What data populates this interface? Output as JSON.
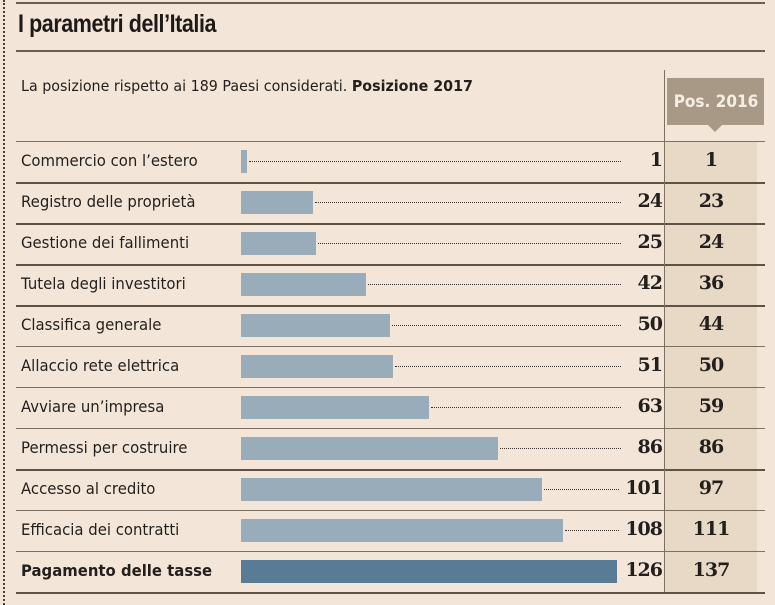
{
  "chart_data": {
    "type": "bar",
    "orientation": "horizontal",
    "title": "I parametri dell’Italia",
    "subtitle": "La posizione rispetto ai 189 Paesi considerati.",
    "series_label": "Posizione 2017",
    "comparison_label": "Pos. 2016",
    "categories": [
      "Commercio con l’estero",
      "Registro delle proprietà",
      "Gestione dei fallimenti",
      "Tutela degli investitori",
      "Classifica generale",
      "Allaccio rete elettrica",
      "Avviare un’impresa",
      "Permessi per costruire",
      "Accesso al credito",
      "Efficacia dei contratti",
      "Pagamento delle tasse"
    ],
    "series": [
      {
        "name": "Posizione 2017",
        "values": [
          1,
          24,
          25,
          42,
          50,
          51,
          63,
          86,
          101,
          108,
          126
        ]
      },
      {
        "name": "Pos. 2016",
        "values": [
          1,
          23,
          24,
          36,
          44,
          50,
          59,
          86,
          97,
          111,
          137
        ]
      }
    ],
    "highlight_index": 10,
    "xlim": [
      0,
      189
    ],
    "colors": {
      "bar": "#98acb9",
      "highlight": "#5a7b96",
      "badge": "#a89886"
    }
  }
}
